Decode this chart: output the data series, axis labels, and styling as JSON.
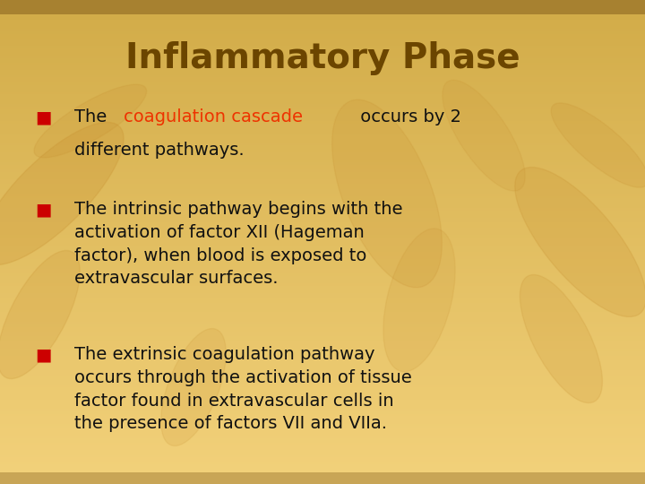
{
  "title": "Inflammatory Phase",
  "title_color": "#6B4500",
  "title_fontsize": 28,
  "bg_color": "#F2C97A",
  "bg_top": "#C8A055",
  "bg_bottom": "#EEC97A",
  "bullet_color": "#CC0000",
  "text_color": "#111111",
  "highlight_color": "#EE3300",
  "font_family": "Comic Sans MS",
  "bullet_font_size": 14,
  "text_font_size": 14,
  "bullet1_line1": "The ",
  "bullet1_highlight": "coagulation cascade",
  "bullet1_line1_end": " occurs by 2",
  "bullet1_line2": "different pathways.",
  "bullet2_text": "The intrinsic pathway begins with the\nactivation of factor XII (Hageman\nfactor), when blood is exposed to\nextravascular surfaces.",
  "bullet3_text": "The extrinsic coagulation pathway\noccurs through the activation of tissue\nfactor found in extravascular cells in\nthe presence of factors VII and VIIa."
}
